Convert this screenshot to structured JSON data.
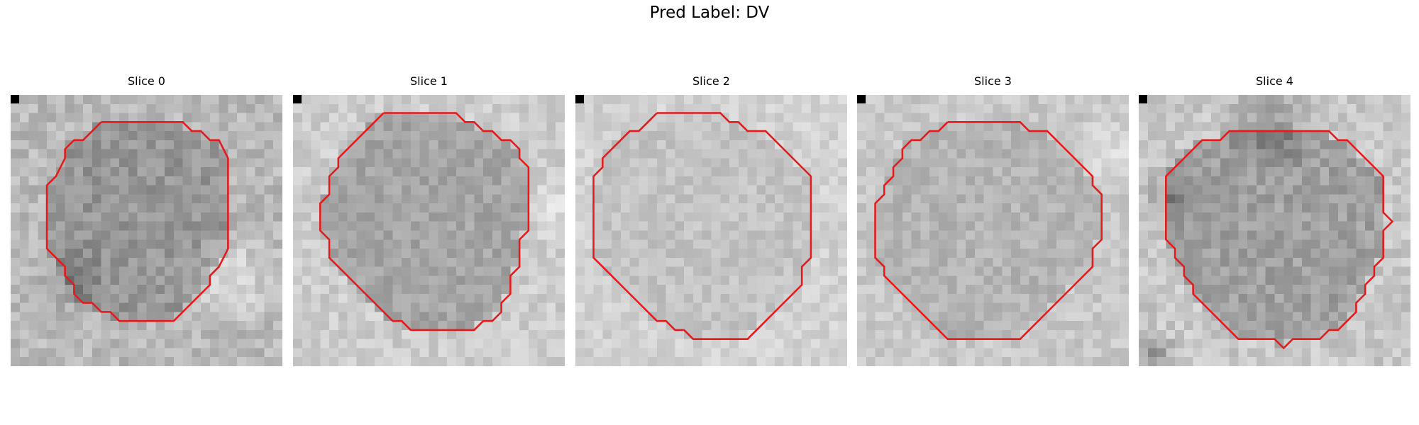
{
  "figure": {
    "suptitle": "Pred Label: DV",
    "contour_color": "#e41a1c"
  },
  "slices": [
    {
      "title": "Slice 0",
      "contour": [
        [
          10,
          3
        ],
        [
          19,
          3
        ],
        [
          20,
          4
        ],
        [
          21,
          4
        ],
        [
          22,
          5
        ],
        [
          23,
          5
        ],
        [
          24,
          7
        ],
        [
          24,
          17
        ],
        [
          23,
          19
        ],
        [
          22,
          20
        ],
        [
          22,
          21
        ],
        [
          21,
          22
        ],
        [
          20,
          23
        ],
        [
          19,
          24
        ],
        [
          18,
          25
        ],
        [
          12,
          25
        ],
        [
          11,
          24
        ],
        [
          10,
          24
        ],
        [
          9,
          23
        ],
        [
          8,
          23
        ],
        [
          7,
          22
        ],
        [
          7,
          21
        ],
        [
          6,
          20
        ],
        [
          6,
          19
        ],
        [
          5,
          18
        ],
        [
          4,
          17
        ],
        [
          4,
          10
        ],
        [
          5,
          9
        ],
        [
          6,
          7
        ],
        [
          6,
          6
        ],
        [
          7,
          5
        ],
        [
          8,
          5
        ],
        [
          9,
          4
        ],
        [
          10,
          3
        ]
      ]
    },
    {
      "title": "Slice 1",
      "contour": [
        [
          10,
          2
        ],
        [
          18,
          2
        ],
        [
          19,
          3
        ],
        [
          20,
          3
        ],
        [
          21,
          4
        ],
        [
          22,
          4
        ],
        [
          23,
          5
        ],
        [
          24,
          5
        ],
        [
          25,
          6
        ],
        [
          25,
          7
        ],
        [
          26,
          8
        ],
        [
          26,
          15
        ],
        [
          25,
          16
        ],
        [
          25,
          19
        ],
        [
          24,
          20
        ],
        [
          24,
          22
        ],
        [
          23,
          23
        ],
        [
          23,
          24
        ],
        [
          22,
          25
        ],
        [
          21,
          25
        ],
        [
          20,
          26
        ],
        [
          13,
          26
        ],
        [
          12,
          25
        ],
        [
          11,
          25
        ],
        [
          10,
          24
        ],
        [
          9,
          23
        ],
        [
          8,
          22
        ],
        [
          7,
          21
        ],
        [
          6,
          20
        ],
        [
          5,
          19
        ],
        [
          4,
          18
        ],
        [
          4,
          16
        ],
        [
          3,
          15
        ],
        [
          3,
          12
        ],
        [
          4,
          11
        ],
        [
          4,
          9
        ],
        [
          5,
          8
        ],
        [
          5,
          7
        ],
        [
          6,
          6
        ],
        [
          7,
          5
        ],
        [
          8,
          4
        ],
        [
          9,
          3
        ],
        [
          10,
          2
        ]
      ]
    },
    {
      "title": "Slice 2",
      "contour": [
        [
          9,
          2
        ],
        [
          16,
          2
        ],
        [
          17,
          3
        ],
        [
          18,
          3
        ],
        [
          19,
          4
        ],
        [
          21,
          4
        ],
        [
          22,
          5
        ],
        [
          23,
          6
        ],
        [
          24,
          7
        ],
        [
          25,
          8
        ],
        [
          26,
          9
        ],
        [
          26,
          18
        ],
        [
          25,
          19
        ],
        [
          25,
          21
        ],
        [
          24,
          22
        ],
        [
          23,
          23
        ],
        [
          22,
          24
        ],
        [
          21,
          25
        ],
        [
          20,
          26
        ],
        [
          19,
          27
        ],
        [
          13,
          27
        ],
        [
          12,
          26
        ],
        [
          11,
          26
        ],
        [
          10,
          25
        ],
        [
          9,
          25
        ],
        [
          8,
          24
        ],
        [
          7,
          23
        ],
        [
          6,
          22
        ],
        [
          5,
          21
        ],
        [
          4,
          20
        ],
        [
          3,
          19
        ],
        [
          2,
          18
        ],
        [
          2,
          9
        ],
        [
          3,
          8
        ],
        [
          3,
          7
        ],
        [
          4,
          6
        ],
        [
          5,
          5
        ],
        [
          6,
          4
        ],
        [
          7,
          4
        ],
        [
          8,
          3
        ],
        [
          9,
          2
        ]
      ]
    },
    {
      "title": "Slice 3",
      "contour": [
        [
          10,
          3
        ],
        [
          18,
          3
        ],
        [
          19,
          4
        ],
        [
          21,
          4
        ],
        [
          22,
          5
        ],
        [
          23,
          6
        ],
        [
          24,
          7
        ],
        [
          25,
          8
        ],
        [
          26,
          9
        ],
        [
          26,
          10
        ],
        [
          27,
          11
        ],
        [
          27,
          16
        ],
        [
          26,
          17
        ],
        [
          26,
          19
        ],
        [
          25,
          20
        ],
        [
          24,
          21
        ],
        [
          23,
          22
        ],
        [
          22,
          23
        ],
        [
          21,
          24
        ],
        [
          20,
          25
        ],
        [
          19,
          26
        ],
        [
          18,
          27
        ],
        [
          10,
          27
        ],
        [
          9,
          26
        ],
        [
          8,
          25
        ],
        [
          7,
          24
        ],
        [
          6,
          23
        ],
        [
          5,
          22
        ],
        [
          4,
          21
        ],
        [
          3,
          20
        ],
        [
          3,
          19
        ],
        [
          2,
          18
        ],
        [
          2,
          12
        ],
        [
          3,
          11
        ],
        [
          3,
          10
        ],
        [
          4,
          9
        ],
        [
          4,
          8
        ],
        [
          5,
          7
        ],
        [
          5,
          6
        ],
        [
          6,
          5
        ],
        [
          7,
          5
        ],
        [
          8,
          4
        ],
        [
          9,
          4
        ],
        [
          10,
          3
        ]
      ]
    },
    {
      "title": "Slice 4",
      "contour": [
        [
          11,
          4
        ],
        [
          21,
          4
        ],
        [
          22,
          5
        ],
        [
          23,
          5
        ],
        [
          24,
          6
        ],
        [
          25,
          7
        ],
        [
          26,
          8
        ],
        [
          27,
          9
        ],
        [
          27,
          13
        ],
        [
          28,
          14
        ],
        [
          27,
          15
        ],
        [
          27,
          18
        ],
        [
          26,
          19
        ],
        [
          26,
          20
        ],
        [
          25,
          21
        ],
        [
          25,
          22
        ],
        [
          24,
          23
        ],
        [
          24,
          24
        ],
        [
          23,
          25
        ],
        [
          22,
          26
        ],
        [
          21,
          26
        ],
        [
          20,
          27
        ],
        [
          17,
          27
        ],
        [
          16,
          28
        ],
        [
          15,
          27
        ],
        [
          11,
          27
        ],
        [
          10,
          26
        ],
        [
          9,
          25
        ],
        [
          8,
          24
        ],
        [
          7,
          23
        ],
        [
          6,
          22
        ],
        [
          6,
          21
        ],
        [
          5,
          20
        ],
        [
          5,
          19
        ],
        [
          4,
          18
        ],
        [
          4,
          17
        ],
        [
          3,
          16
        ],
        [
          3,
          9
        ],
        [
          4,
          8
        ],
        [
          5,
          7
        ],
        [
          6,
          6
        ],
        [
          7,
          5
        ],
        [
          8,
          5
        ],
        [
          9,
          5
        ],
        [
          10,
          4
        ],
        [
          11,
          4
        ]
      ]
    }
  ]
}
